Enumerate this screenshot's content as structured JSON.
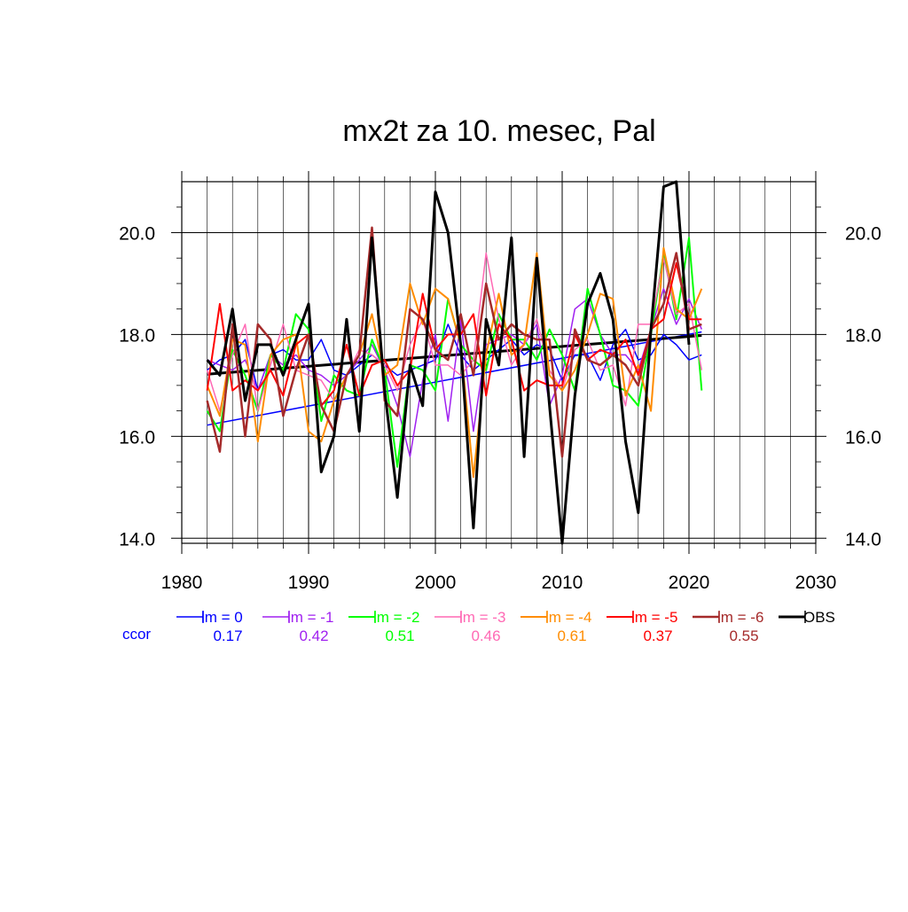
{
  "chart_data": {
    "type": "line",
    "title": "mx2t za 10. mesec, Pal",
    "xlabel": "",
    "ylabel": "",
    "xlim": [
      1980,
      2030
    ],
    "ylim": [
      13.9,
      21.0
    ],
    "x_ticks": [
      "1980",
      "1990",
      "2000",
      "2010",
      "2020",
      "2030"
    ],
    "x_tick_values": [
      1980,
      1990,
      2000,
      2010,
      2020,
      2030
    ],
    "y_ticks": [
      "14.0",
      "16.0",
      "18.0",
      "20.0"
    ],
    "y_tick_values": [
      14,
      16,
      18,
      20
    ],
    "grid": true,
    "legend_position": "bottom",
    "ccor_label": "ccor",
    "years": [
      1982,
      1983,
      1984,
      1985,
      1986,
      1987,
      1988,
      1989,
      1990,
      1991,
      1992,
      1993,
      1994,
      1995,
      1996,
      1997,
      1998,
      1999,
      2000,
      2001,
      2002,
      2003,
      2004,
      2005,
      2006,
      2007,
      2008,
      2009,
      2010,
      2011,
      2012,
      2013,
      2014,
      2015,
      2016,
      2017,
      2018,
      2019,
      2020,
      2021
    ],
    "series": [
      {
        "name": "lm = 0",
        "color": "#0000ff",
        "ccor": "0.17",
        "width": 1.5,
        "values": [
          17.3,
          17.5,
          17.6,
          17.9,
          16.9,
          17.6,
          17.7,
          17.5,
          17.5,
          17.9,
          17.3,
          17.2,
          17.4,
          17.6,
          17.4,
          17.2,
          17.3,
          17.4,
          17.5,
          18.2,
          17.6,
          17.3,
          17.5,
          17.7,
          17.9,
          17.6,
          17.8,
          17.7,
          17.1,
          17.6,
          17.6,
          17.1,
          17.8,
          18.1,
          17.5,
          17.6,
          18.0,
          17.8,
          17.5,
          17.6
        ]
      },
      {
        "name": "lm = -1",
        "color": "#a020f0",
        "ccor": "0.42",
        "width": 1.5,
        "values": [
          17.5,
          17.4,
          17.3,
          17.5,
          16.9,
          17.6,
          17.4,
          17.6,
          17.3,
          17.2,
          17.0,
          17.2,
          17.5,
          17.8,
          17.3,
          16.6,
          15.6,
          17.1,
          18.0,
          16.3,
          18.3,
          16.1,
          17.8,
          17.9,
          18.0,
          17.8,
          18.2,
          16.6,
          17.2,
          18.5,
          18.7,
          18.0,
          17.6,
          17.6,
          17.3,
          18.1,
          18.9,
          18.2,
          18.7,
          18.1
        ]
      },
      {
        "name": "lm = -2",
        "color": "#00ff00",
        "ccor": "0.51",
        "width": 2,
        "values": [
          16.5,
          16.1,
          17.7,
          17.2,
          16.5,
          17.6,
          17.3,
          18.4,
          18.1,
          16.3,
          17.2,
          16.9,
          16.8,
          17.9,
          17.3,
          15.4,
          17.4,
          17.3,
          16.9,
          18.7,
          17.8,
          17.5,
          17.3,
          18.4,
          17.9,
          17.9,
          17.5,
          18.1,
          17.6,
          16.9,
          18.9,
          18.0,
          17.0,
          16.9,
          16.6,
          18.0,
          19.6,
          18.3,
          19.9,
          16.9
        ]
      },
      {
        "name": "lm = -3",
        "color": "#ff69b4",
        "ccor": "0.46",
        "width": 1.5,
        "values": [
          17.3,
          16.5,
          17.6,
          18.2,
          16.5,
          17.4,
          18.2,
          17.3,
          17.2,
          17.1,
          16.7,
          17.2,
          17.7,
          17.6,
          17.4,
          16.9,
          17.8,
          18.3,
          17.4,
          17.4,
          17.2,
          17.5,
          19.6,
          18.3,
          17.4,
          17.8,
          18.3,
          17.3,
          16.9,
          17.7,
          17.9,
          17.3,
          17.4,
          16.6,
          18.2,
          18.2,
          19.5,
          18.4,
          18.6,
          17.3
        ]
      },
      {
        "name": "lm = -4",
        "color": "#ff8c00",
        "ccor": "0.61",
        "width": 2,
        "values": [
          17.0,
          16.4,
          17.9,
          17.8,
          15.9,
          17.6,
          17.9,
          18.0,
          16.1,
          15.9,
          16.7,
          17.2,
          17.6,
          18.4,
          17.2,
          17.4,
          19.0,
          18.2,
          18.9,
          18.7,
          17.8,
          15.2,
          17.6,
          18.8,
          17.6,
          17.8,
          19.6,
          17.2,
          16.9,
          17.3,
          18.0,
          18.8,
          18.7,
          16.8,
          17.4,
          16.5,
          19.7,
          18.5,
          18.3,
          18.9
        ]
      },
      {
        "name": "lm = -5",
        "color": "#ff0000",
        "ccor": "0.37",
        "width": 2,
        "values": [
          16.9,
          18.6,
          16.9,
          17.1,
          16.9,
          17.3,
          16.8,
          17.8,
          18.0,
          16.6,
          16.9,
          17.8,
          16.8,
          17.4,
          17.5,
          17.0,
          17.3,
          18.8,
          17.7,
          18.0,
          18.0,
          18.4,
          16.8,
          18.2,
          17.9,
          16.9,
          17.1,
          17.0,
          17.0,
          18.0,
          17.5,
          17.7,
          17.6,
          17.9,
          17.2,
          18.1,
          18.3,
          19.4,
          18.3,
          18.3
        ]
      },
      {
        "name": "lm = -6",
        "color": "#a52a2a",
        "ccor": "0.55",
        "width": 2.5,
        "values": [
          16.7,
          15.7,
          18.2,
          16.0,
          18.2,
          17.9,
          16.4,
          17.3,
          18.0,
          16.6,
          16.1,
          17.2,
          17.6,
          20.1,
          16.7,
          16.4,
          18.5,
          18.3,
          17.7,
          17.5,
          18.4,
          17.2,
          19.0,
          17.9,
          18.2,
          18.0,
          17.9,
          17.9,
          15.6,
          18.1,
          17.5,
          17.4,
          17.6,
          17.4,
          17.0,
          18.1,
          18.6,
          19.6,
          18.1,
          18.2
        ]
      },
      {
        "name": "OBS",
        "color": "#000000",
        "ccor": "",
        "width": 3,
        "values": [
          17.5,
          17.2,
          18.5,
          16.7,
          17.8,
          17.8,
          17.2,
          17.9,
          18.6,
          15.3,
          16.0,
          18.3,
          16.1,
          19.9,
          16.9,
          14.8,
          17.4,
          16.6,
          20.8,
          20.0,
          17.8,
          14.2,
          18.3,
          17.4,
          19.9,
          15.6,
          19.5,
          16.6,
          13.9,
          16.8,
          18.6,
          19.2,
          18.3,
          15.9,
          14.5,
          18.1,
          20.9,
          21.0,
          17.8,
          null
        ]
      }
    ],
    "trendlines": [
      {
        "color": "#0000ff",
        "width": 1.5,
        "x": [
          1982,
          2021
        ],
        "y": [
          16.22,
          18.05
        ]
      },
      {
        "color": "#000000",
        "width": 3,
        "x": [
          1982,
          2021
        ],
        "y": [
          17.22,
          17.98
        ]
      }
    ]
  }
}
